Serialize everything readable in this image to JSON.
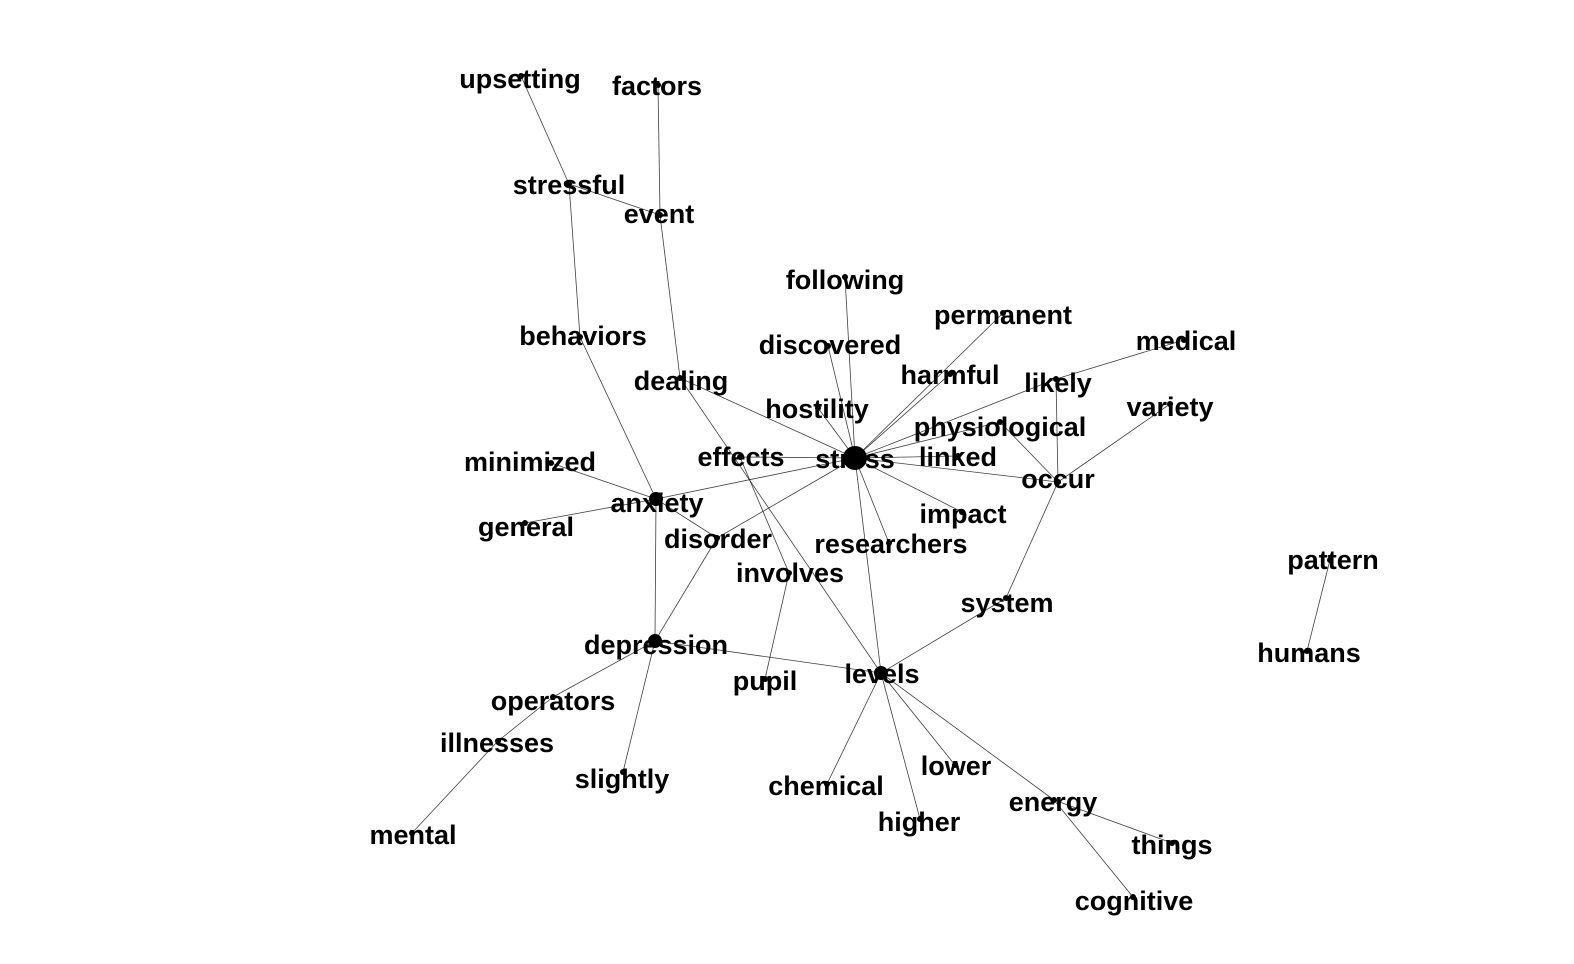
{
  "colors": {
    "background": "#ffffff",
    "edge": "#000000",
    "node": "#000000",
    "label": "#000000"
  },
  "graph": {
    "nodes": [
      {
        "id": "upsetting",
        "label": "upsetting",
        "size": "small"
      },
      {
        "id": "factors",
        "label": "factors",
        "size": "small"
      },
      {
        "id": "stressful",
        "label": "stressful",
        "size": "small"
      },
      {
        "id": "event",
        "label": "event",
        "size": "small"
      },
      {
        "id": "following",
        "label": "following",
        "size": "small"
      },
      {
        "id": "permanent",
        "label": "permanent",
        "size": "small"
      },
      {
        "id": "medical",
        "label": "medical",
        "size": "small"
      },
      {
        "id": "behaviors",
        "label": "behaviors",
        "size": "small"
      },
      {
        "id": "discovered",
        "label": "discovered",
        "size": "small"
      },
      {
        "id": "harmful",
        "label": "harmful",
        "size": "small"
      },
      {
        "id": "likely",
        "label": "likely",
        "size": "small"
      },
      {
        "id": "dealing",
        "label": "dealing",
        "size": "small"
      },
      {
        "id": "variety",
        "label": "variety",
        "size": "small"
      },
      {
        "id": "hostility",
        "label": "hostility",
        "size": "small"
      },
      {
        "id": "physiological",
        "label": "physiological",
        "size": "small"
      },
      {
        "id": "minimized",
        "label": "minimized",
        "size": "small"
      },
      {
        "id": "effects",
        "label": "effects",
        "size": "small"
      },
      {
        "id": "stress",
        "label": "stress",
        "size": "hub"
      },
      {
        "id": "linked",
        "label": "linked",
        "size": "small"
      },
      {
        "id": "occur",
        "label": "occur",
        "size": "small"
      },
      {
        "id": "anxiety",
        "label": "anxiety",
        "size": "medium"
      },
      {
        "id": "impact",
        "label": "impact",
        "size": "small"
      },
      {
        "id": "general",
        "label": "general",
        "size": "small"
      },
      {
        "id": "disorder",
        "label": "disorder",
        "size": "small"
      },
      {
        "id": "researchers",
        "label": "researchers",
        "size": "small"
      },
      {
        "id": "involves",
        "label": "involves",
        "size": "small"
      },
      {
        "id": "pattern",
        "label": "pattern",
        "size": "small"
      },
      {
        "id": "system",
        "label": "system",
        "size": "small"
      },
      {
        "id": "depression",
        "label": "depression",
        "size": "medium"
      },
      {
        "id": "humans",
        "label": "humans",
        "size": "small"
      },
      {
        "id": "pupil",
        "label": "pupil",
        "size": "small"
      },
      {
        "id": "levels",
        "label": "levels",
        "size": "medium"
      },
      {
        "id": "operators",
        "label": "operators",
        "size": "small"
      },
      {
        "id": "illnesses",
        "label": "illnesses",
        "size": "small"
      },
      {
        "id": "slightly",
        "label": "slightly",
        "size": "small"
      },
      {
        "id": "lower",
        "label": "lower",
        "size": "small"
      },
      {
        "id": "chemical",
        "label": "chemical",
        "size": "small"
      },
      {
        "id": "energy",
        "label": "energy",
        "size": "small"
      },
      {
        "id": "mental",
        "label": "mental",
        "size": "small"
      },
      {
        "id": "higher",
        "label": "higher",
        "size": "small"
      },
      {
        "id": "things",
        "label": "things",
        "size": "small"
      },
      {
        "id": "cognitive",
        "label": "cognitive",
        "size": "small"
      }
    ],
    "edges": [
      [
        "upsetting",
        "stressful"
      ],
      [
        "factors",
        "event"
      ],
      [
        "stressful",
        "event"
      ],
      [
        "stressful",
        "behaviors"
      ],
      [
        "behaviors",
        "anxiety"
      ],
      [
        "event",
        "dealing"
      ],
      [
        "dealing",
        "stress"
      ],
      [
        "dealing",
        "levels"
      ],
      [
        "following",
        "stress"
      ],
      [
        "discovered",
        "stress"
      ],
      [
        "hostility",
        "stress"
      ],
      [
        "permanent",
        "stress"
      ],
      [
        "harmful",
        "stress"
      ],
      [
        "physiological",
        "stress"
      ],
      [
        "linked",
        "stress"
      ],
      [
        "effects",
        "stress"
      ],
      [
        "impact",
        "stress"
      ],
      [
        "researchers",
        "stress"
      ],
      [
        "stress",
        "occur"
      ],
      [
        "stress",
        "likely"
      ],
      [
        "stress",
        "anxiety"
      ],
      [
        "stress",
        "disorder"
      ],
      [
        "stress",
        "levels"
      ],
      [
        "likely",
        "medical"
      ],
      [
        "likely",
        "occur"
      ],
      [
        "physiological",
        "occur"
      ],
      [
        "variety",
        "occur"
      ],
      [
        "occur",
        "system"
      ],
      [
        "system",
        "levels"
      ],
      [
        "minimized",
        "anxiety"
      ],
      [
        "general",
        "anxiety"
      ],
      [
        "anxiety",
        "disorder"
      ],
      [
        "anxiety",
        "depression"
      ],
      [
        "disorder",
        "depression"
      ],
      [
        "involves",
        "pupil"
      ],
      [
        "involves",
        "effects"
      ],
      [
        "depression",
        "levels"
      ],
      [
        "depression",
        "operators"
      ],
      [
        "depression",
        "slightly"
      ],
      [
        "operators",
        "illnesses"
      ],
      [
        "illnesses",
        "mental"
      ],
      [
        "levels",
        "chemical"
      ],
      [
        "levels",
        "higher"
      ],
      [
        "levels",
        "lower"
      ],
      [
        "levels",
        "energy"
      ],
      [
        "energy",
        "things"
      ],
      [
        "energy",
        "cognitive"
      ],
      [
        "pattern",
        "humans"
      ]
    ]
  }
}
